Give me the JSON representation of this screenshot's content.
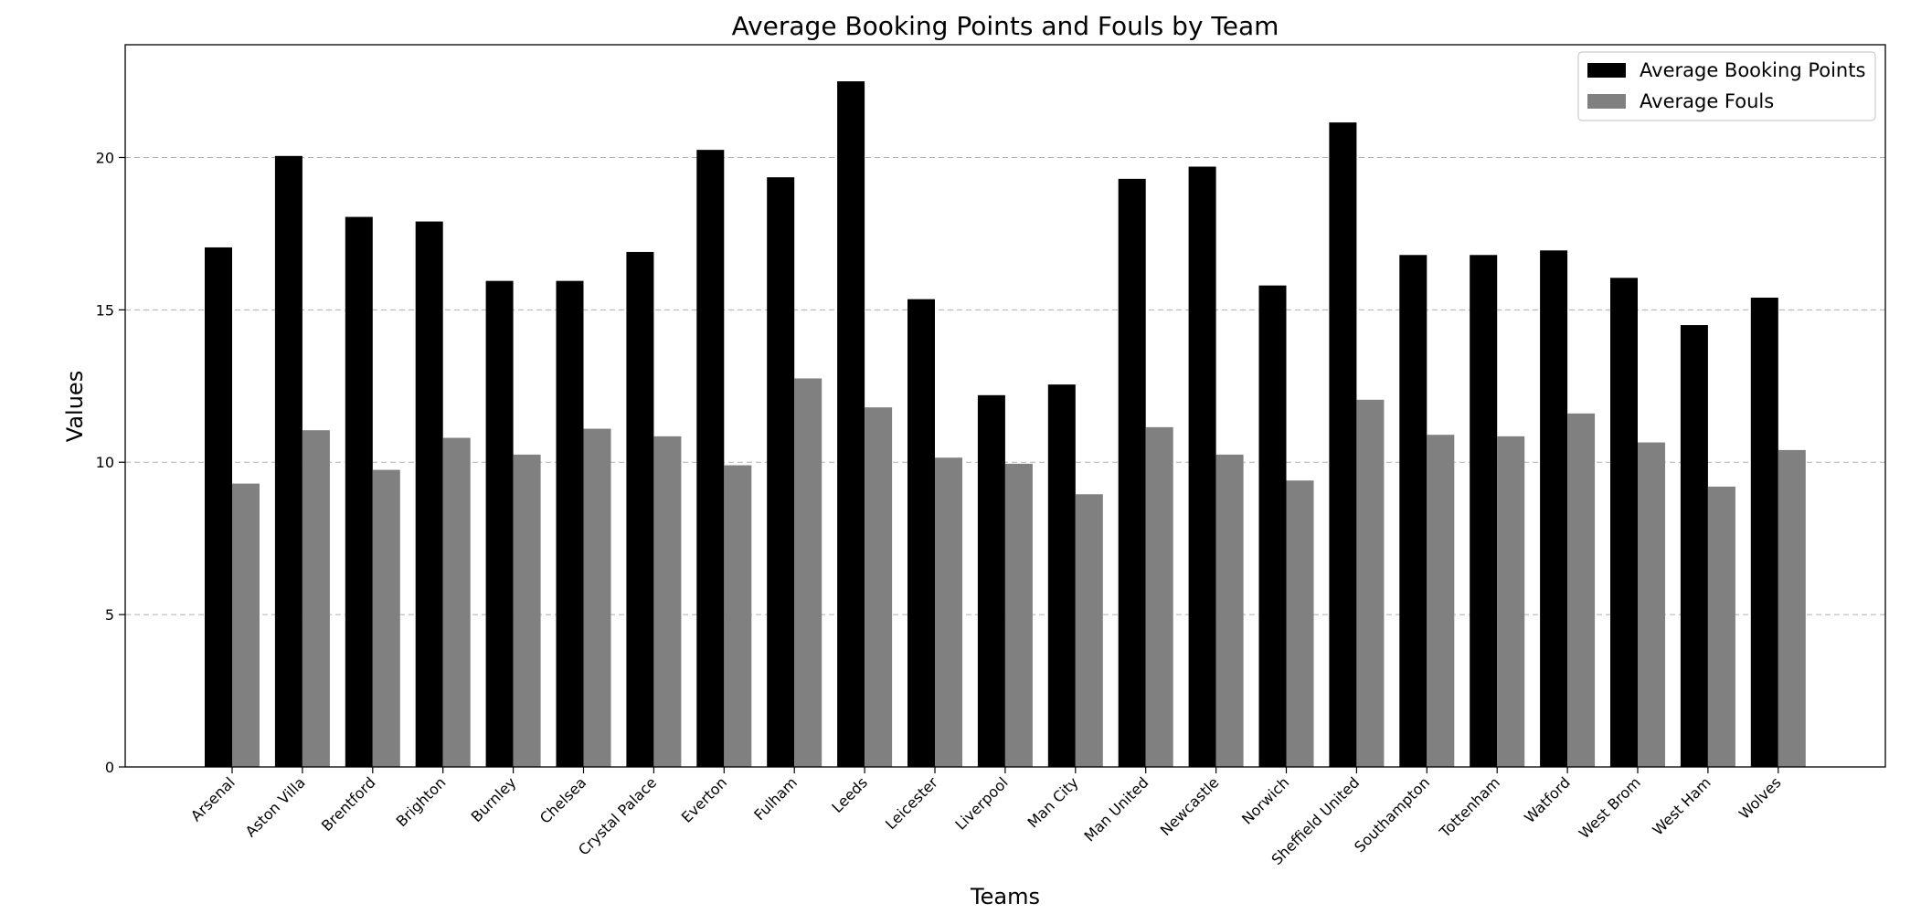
{
  "chart_data": {
    "type": "bar",
    "title": "Average Booking Points and Fouls by Team",
    "xlabel": "Teams",
    "ylabel": "Values",
    "ylim": [
      0,
      23.7
    ],
    "yticks": [
      0,
      5,
      10,
      15,
      20
    ],
    "grid": "y-dashed",
    "legend_position": "top-right",
    "categories": [
      "Arsenal",
      "Aston Villa",
      "Brentford",
      "Brighton",
      "Burnley",
      "Chelsea",
      "Crystal Palace",
      "Everton",
      "Fulham",
      "Leeds",
      "Leicester",
      "Liverpool",
      "Man City",
      "Man United",
      "Newcastle",
      "Norwich",
      "Sheffield United",
      "Southampton",
      "Tottenham",
      "Watford",
      "West Brom",
      "West Ham",
      "Wolves"
    ],
    "series": [
      {
        "name": "Average Booking Points",
        "color": "#000000",
        "values": [
          17.05,
          20.05,
          18.05,
          17.9,
          15.95,
          15.95,
          16.9,
          20.25,
          19.35,
          22.5,
          15.35,
          12.2,
          12.55,
          19.3,
          19.7,
          15.8,
          21.15,
          16.8,
          16.8,
          16.95,
          16.05,
          14.5,
          15.4
        ]
      },
      {
        "name": "Average Fouls",
        "color": "#808080",
        "values": [
          9.3,
          11.05,
          9.75,
          10.8,
          10.25,
          11.1,
          10.85,
          9.9,
          12.75,
          11.8,
          10.15,
          9.95,
          8.95,
          11.15,
          10.25,
          9.4,
          12.05,
          10.9,
          10.85,
          11.6,
          10.65,
          9.2,
          10.4
        ]
      }
    ]
  }
}
